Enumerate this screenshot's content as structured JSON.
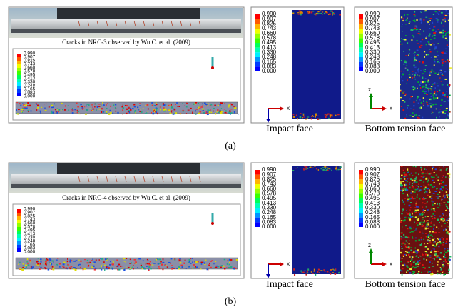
{
  "figure": {
    "panels": [
      {
        "photo_caption": "Cracks in NRC-3 observed by Wu C. et al. (2009)",
        "photo_legend": [
          "0.990",
          "0.907",
          "0.825",
          "0.743",
          "0.660",
          "0.578",
          "0.495",
          "0.413",
          "0.330",
          "0.248",
          "0.165",
          "0.083",
          "0.000"
        ],
        "impact": {
          "legend": [
            "0.990",
            "0.907",
            "0.825",
            "0.743",
            "0.660",
            "0.578",
            "0.495",
            "0.413",
            "0.330",
            "0.248",
            "0.165",
            "0.083",
            "0.000"
          ],
          "axis_x": "x",
          "caption": "Impact face"
        },
        "bottom": {
          "legend": [
            "0.990",
            "0.907",
            "0.825",
            "0.743",
            "0.660",
            "0.578",
            "0.495",
            "0.413",
            "0.330",
            "0.248",
            "0.165",
            "0.083",
            "0.000"
          ],
          "axis_z": "z",
          "axis_x": "x",
          "caption": "Bottom tension face"
        },
        "label": "(a)"
      },
      {
        "photo_caption": "Cracks in NRC-4 observed by Wu C. et al. (2009)",
        "photo_legend": [
          "0.990",
          "0.907",
          "0.825",
          "0.743",
          "0.660",
          "0.578",
          "0.495",
          "0.413",
          "0.330",
          "0.248",
          "0.165",
          "0.083",
          "0.000"
        ],
        "impact": {
          "legend": [
            "0.990",
            "0.907",
            "0.825",
            "0.743",
            "0.660",
            "0.578",
            "0.495",
            "0.413",
            "0.330",
            "0.248",
            "0.165",
            "0.083",
            "0.000"
          ],
          "axis_x": "x",
          "caption": "Impact face"
        },
        "bottom": {
          "legend": [
            "0.990",
            "0.907",
            "0.825",
            "0.743",
            "0.660",
            "0.578",
            "0.495",
            "0.413",
            "0.330",
            "0.248",
            "0.165",
            "0.083",
            "0.000"
          ],
          "axis_z": "z",
          "axis_x": "x",
          "caption": "Bottom tension face"
        },
        "label": "(b)"
      }
    ]
  }
}
